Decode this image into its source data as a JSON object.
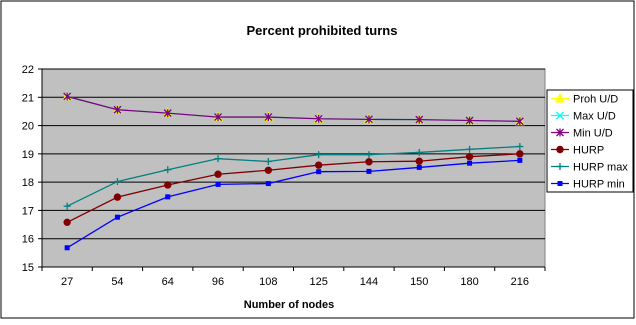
{
  "chart_data": {
    "type": "line",
    "title": "Percent prohibited turns",
    "xlabel": "Number of nodes",
    "ylabel": "",
    "categories": [
      "27",
      "54",
      "64",
      "96",
      "108",
      "125",
      "144",
      "150",
      "180",
      "216"
    ],
    "ylim": [
      15,
      22
    ],
    "yticks": [
      15,
      16,
      17,
      18,
      19,
      20,
      21,
      22
    ],
    "grid": "horizontal",
    "legend_position": "right",
    "plot_background": "#c0c0c0",
    "series": [
      {
        "name": "Proh U/D",
        "color": "#ffff00",
        "marker": "triangle",
        "values": [
          21.03,
          20.56,
          20.44,
          20.3,
          20.3,
          20.24,
          20.22,
          20.21,
          20.18,
          20.15
        ]
      },
      {
        "name": "Max U/D",
        "color": "#00ffff",
        "marker": "x",
        "values": [
          21.03,
          20.56,
          20.44,
          20.3,
          20.3,
          20.24,
          20.22,
          20.21,
          20.18,
          20.15
        ]
      },
      {
        "name": "Min U/D",
        "color": "#800080",
        "marker": "star",
        "values": [
          21.03,
          20.56,
          20.44,
          20.3,
          20.3,
          20.24,
          20.22,
          20.21,
          20.18,
          20.15
        ]
      },
      {
        "name": "HURP",
        "color": "#800000",
        "marker": "circle",
        "values": [
          16.58,
          17.47,
          17.9,
          18.28,
          18.42,
          18.6,
          18.72,
          18.74,
          18.9,
          19.0
        ]
      },
      {
        "name": "HURP max",
        "color": "#008080",
        "marker": "plus",
        "values": [
          17.15,
          18.02,
          18.44,
          18.83,
          18.73,
          18.97,
          18.97,
          19.05,
          19.16,
          19.26
        ]
      },
      {
        "name": "HURP min",
        "color": "#0000ff",
        "marker": "square",
        "values": [
          15.68,
          16.76,
          17.48,
          17.92,
          17.95,
          18.37,
          18.38,
          18.52,
          18.67,
          18.77
        ]
      }
    ]
  }
}
